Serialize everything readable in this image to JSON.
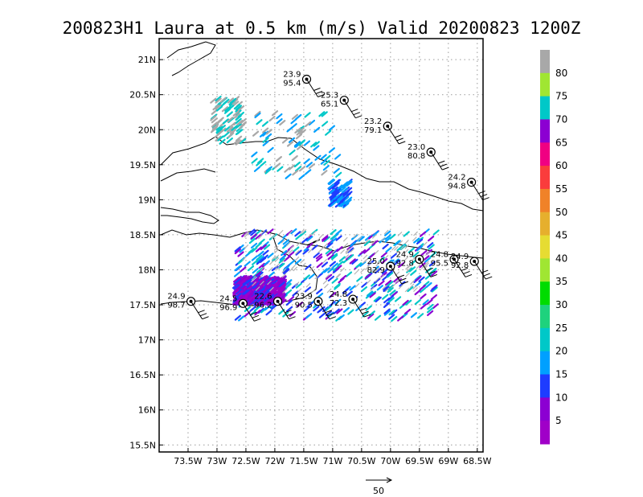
{
  "title": "200823H1 Laura at 0.5 km (m/s) Valid 20200823 1200Z",
  "map": {
    "lon_range": [
      -74,
      -68.4
    ],
    "lat_range": [
      15.4,
      21.3
    ],
    "lon_ticks": [
      {
        "value": -73.5,
        "label": "73.5W"
      },
      {
        "value": -73,
        "label": "73W"
      },
      {
        "value": -72.5,
        "label": "72.5W"
      },
      {
        "value": -72,
        "label": "72W"
      },
      {
        "value": -71.5,
        "label": "71.5W"
      },
      {
        "value": -71,
        "label": "71W"
      },
      {
        "value": -70.5,
        "label": "70.5W"
      },
      {
        "value": -70,
        "label": "70W"
      },
      {
        "value": -69.5,
        "label": "69.5W"
      },
      {
        "value": -69,
        "label": "69W"
      },
      {
        "value": -68.5,
        "label": "68.5W"
      }
    ],
    "lat_ticks": [
      {
        "value": 21,
        "label": "21N"
      },
      {
        "value": 20.5,
        "label": "20.5N"
      },
      {
        "value": 20,
        "label": "20N"
      },
      {
        "value": 19.5,
        "label": "19.5N"
      },
      {
        "value": 19,
        "label": "19N"
      },
      {
        "value": 18.5,
        "label": "18.5N"
      },
      {
        "value": 18,
        "label": "18N"
      },
      {
        "value": 17.5,
        "label": "17.5N"
      },
      {
        "value": 17,
        "label": "17N"
      },
      {
        "value": 16.5,
        "label": "16.5N"
      },
      {
        "value": 16,
        "label": "16N"
      },
      {
        "value": 15.5,
        "label": "15.5N"
      }
    ],
    "grid": true
  },
  "colorbar": {
    "levels": [
      "80",
      "75",
      "70",
      "65",
      "60",
      "55",
      "50",
      "45",
      "40",
      "35",
      "30",
      "25",
      "20",
      "15",
      "10",
      "5"
    ],
    "colors": [
      "#a8a8a8",
      "#a0e632",
      "#00c8c8",
      "#8c00d2",
      "#f00082",
      "#fa3c3c",
      "#f08228",
      "#e6af2d",
      "#e6dc32",
      "#a0e632",
      "#00dc00",
      "#1ed27d",
      "#00c8c8",
      "#00a0ff",
      "#1e3cff",
      "#8c00d2",
      "#a000c8"
    ]
  },
  "reference_vector": {
    "label": "50"
  },
  "stations": [
    {
      "lon": -71.45,
      "lat": 20.72,
      "top": "23.9",
      "bottom": "95.4"
    },
    {
      "lon": -70.8,
      "lat": 20.42,
      "top": "25.3",
      "bottom": "65.1"
    },
    {
      "lon": -70.05,
      "lat": 20.05,
      "top": "23.2",
      "bottom": "79.1"
    },
    {
      "lon": -69.3,
      "lat": 19.68,
      "top": "23.0",
      "bottom": "80.8"
    },
    {
      "lon": -68.6,
      "lat": 19.25,
      "top": "24.2",
      "bottom": "94.8"
    },
    {
      "lon": -70.0,
      "lat": 18.05,
      "top": "25.0",
      "bottom": "82.9"
    },
    {
      "lon": -69.5,
      "lat": 18.15,
      "top": "24.9",
      "bottom": "92.8"
    },
    {
      "lon": -68.9,
      "lat": 18.15,
      "top": "24.8",
      "bottom": "95.5"
    },
    {
      "lon": -68.55,
      "lat": 18.12,
      "top": "24.9",
      "bottom": "92.8"
    },
    {
      "lon": -73.45,
      "lat": 17.55,
      "top": "24.9",
      "bottom": "98.7"
    },
    {
      "lon": -72.55,
      "lat": 17.52,
      "top": "24.5",
      "bottom": "96.9"
    },
    {
      "lon": -71.95,
      "lat": 17.55,
      "top": "22.6",
      "bottom": "96.2"
    },
    {
      "lon": -71.25,
      "lat": 17.55,
      "top": "23.9",
      "bottom": "90.5"
    },
    {
      "lon": -70.65,
      "lat": 17.58,
      "top": "24.8",
      "bottom": "72.3"
    }
  ]
}
